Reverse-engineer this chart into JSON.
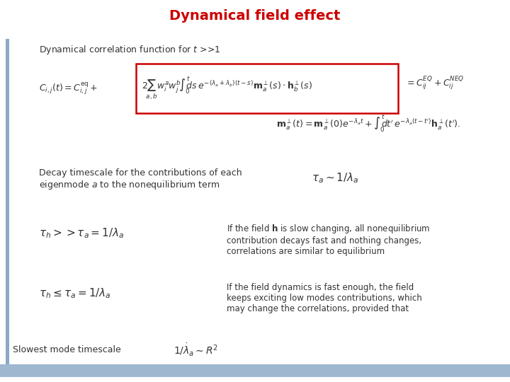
{
  "title": "Dynamical field effect",
  "title_color": "#CC0000",
  "title_fontsize": 14,
  "background_color": "#FFFFFF",
  "slide_bg": "#FFFFFF",
  "left_bar_color": "#7799BB",
  "bottom_bar_color": "#7799BB",
  "text_color": "#333333",
  "box_color": "#CC0000",
  "subtitle": "Dynamical correlation function for $t$ >>1",
  "decay_label": "Decay timescale for the contributions of each\neigenmode $a$ to the nonequilibrium term",
  "decay_eq": "$\\tau_a \\sim 1/\\lambda_a$",
  "case1_eq": "$\\tau_h >> \\tau_a = 1/\\lambda_a$",
  "case1_text": "If the field $\\mathbf{h}$ is slow changing, all nonequilibrium\ncontribution decays fast and nothing changes,\ncorrelations are similar to equilibrium",
  "case2_eq": "$\\tau_h \\leq \\tau_a = 1/\\lambda_a$",
  "case2_text": "If the field dynamics is fast enough, the field\nkeeps exciting low modes contributions, which\nmay change the correlations, provided that",
  "slowest_label": "Slowest mode timescale",
  "slowest_eq": "$1/\\dot{\\lambda}_a \\sim R^2$",
  "fig_width": 7.2,
  "fig_height": 5.4,
  "dpi": 100
}
